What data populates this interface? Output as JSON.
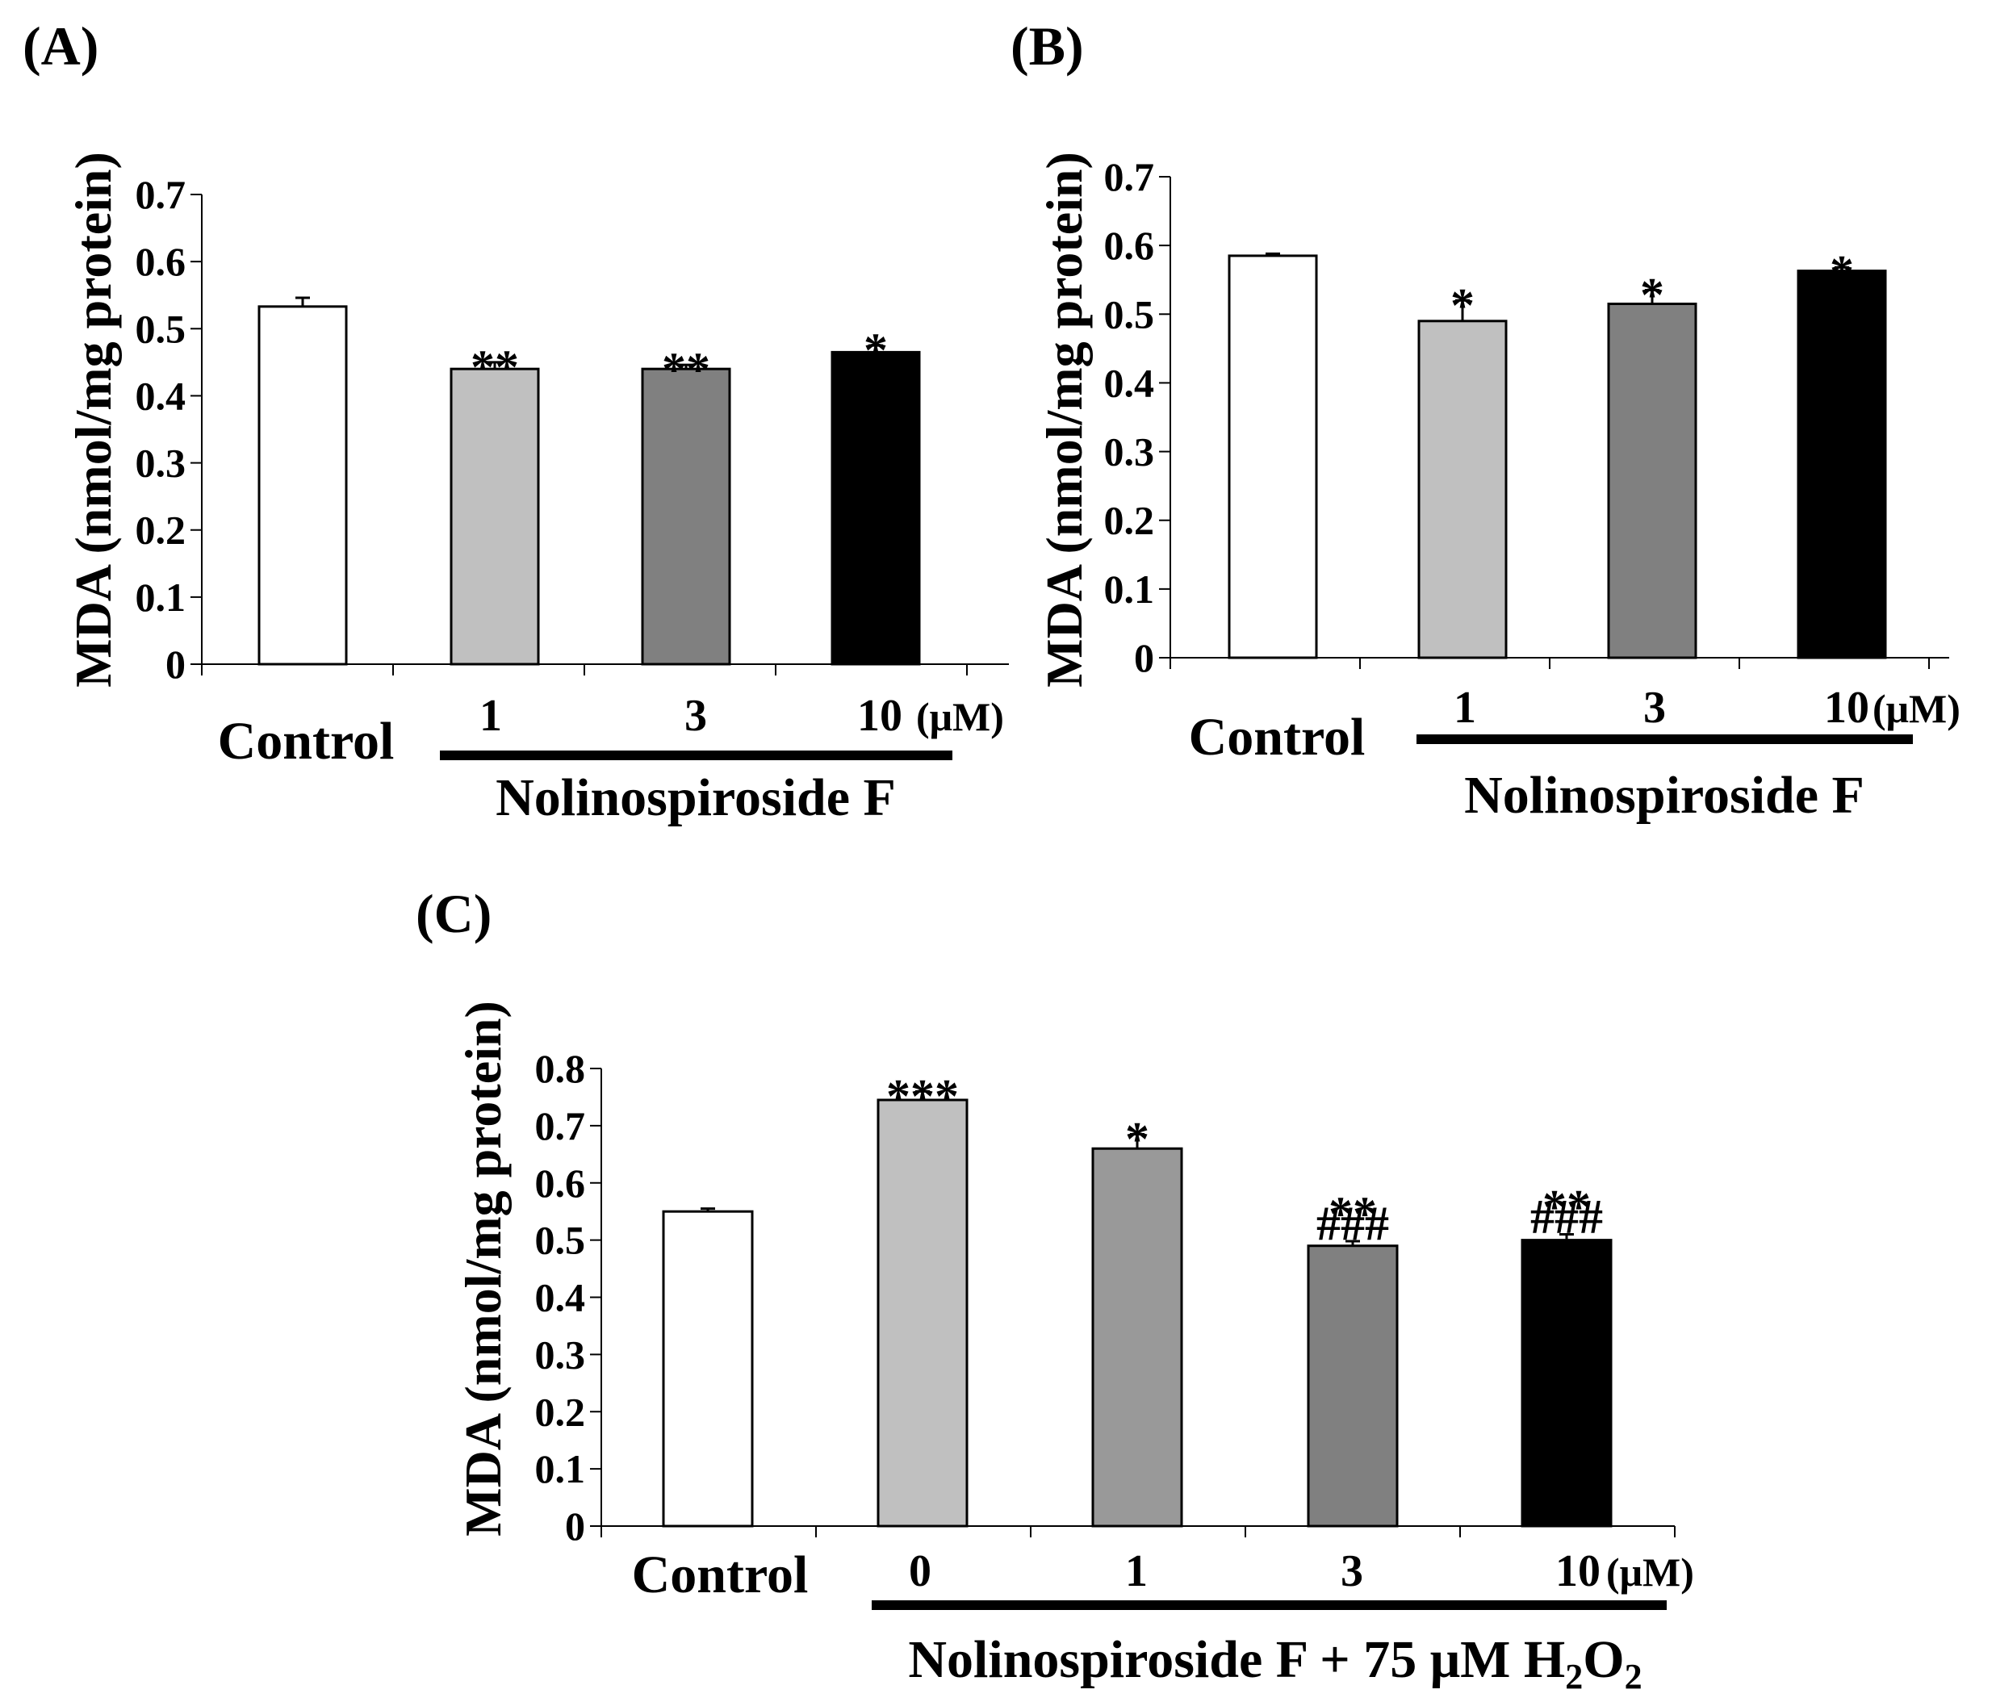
{
  "chart_data": [
    {
      "type": "bar",
      "panel_label": "(A)",
      "ylabel": "MDA (nmol/mg protein)",
      "ylim": [
        0,
        0.7
      ],
      "yticks": [
        "0",
        "0.1",
        "0.2",
        "0.3",
        "0.4",
        "0.5",
        "0.6",
        "0.7"
      ],
      "control_label": "Control",
      "categories": [
        "Control",
        "1",
        "3",
        "10"
      ],
      "category_labels": [
        "",
        "1",
        "3",
        "10"
      ],
      "unit_label": "(μM)",
      "group_label": "Nolinospiroside F",
      "values": [
        0.533,
        0.44,
        0.44,
        0.465
      ],
      "errors": [
        0.013,
        0.01,
        0.006,
        0.01
      ],
      "colors": [
        "#ffffff",
        "#c0c0c0",
        "#808080",
        "#000000"
      ],
      "annotations": [
        "",
        "**",
        "**",
        "*"
      ]
    },
    {
      "type": "bar",
      "panel_label": "(B)",
      "ylabel": "MDA (nmol/mg protein)",
      "ylim": [
        0,
        0.7
      ],
      "yticks": [
        "0",
        "0.1",
        "0.2",
        "0.3",
        "0.4",
        "0.5",
        "0.6",
        "0.7"
      ],
      "control_label": "Control",
      "categories": [
        "Control",
        "1",
        "3",
        "10"
      ],
      "category_labels": [
        "",
        "1",
        "3",
        "10"
      ],
      "unit_label": "(μM)",
      "group_label": "Nolinospiroside F",
      "values": [
        0.585,
        0.49,
        0.515,
        0.563
      ],
      "errors": [
        0.003,
        0.03,
        0.02,
        0.005
      ],
      "colors": [
        "#ffffff",
        "#c0c0c0",
        "#808080",
        "#000000"
      ],
      "annotations": [
        "",
        "*",
        "*",
        "*"
      ]
    },
    {
      "type": "bar",
      "panel_label": "(C)",
      "ylabel": "MDA (nmol/mg protein)",
      "ylim": [
        0,
        0.8
      ],
      "yticks": [
        "0",
        "0.1",
        "0.2",
        "0.3",
        "0.4",
        "0.5",
        "0.6",
        "0.7",
        "0.8"
      ],
      "control_label": "Control",
      "categories": [
        "Control",
        "0",
        "1",
        "3",
        "10"
      ],
      "category_labels": [
        "",
        "0",
        "1",
        "3",
        "10"
      ],
      "unit_label": "(μM)",
      "group_label_main": "Nolinospiroside F + 75 μM H",
      "group_label_sub1": "2",
      "group_label_o": "O",
      "group_label_sub2": "2",
      "values": [
        0.55,
        0.745,
        0.66,
        0.49,
        0.5
      ],
      "errors": [
        0.005,
        0.015,
        0.025,
        0.008,
        0.01
      ],
      "colors": [
        "#ffffff",
        "#c0c0c0",
        "#999999",
        "#808080",
        "#000000"
      ],
      "annotations": [
        "",
        "***",
        "*",
        "**",
        "**"
      ],
      "annotations2": [
        "",
        "",
        "",
        "###",
        "###"
      ]
    }
  ]
}
